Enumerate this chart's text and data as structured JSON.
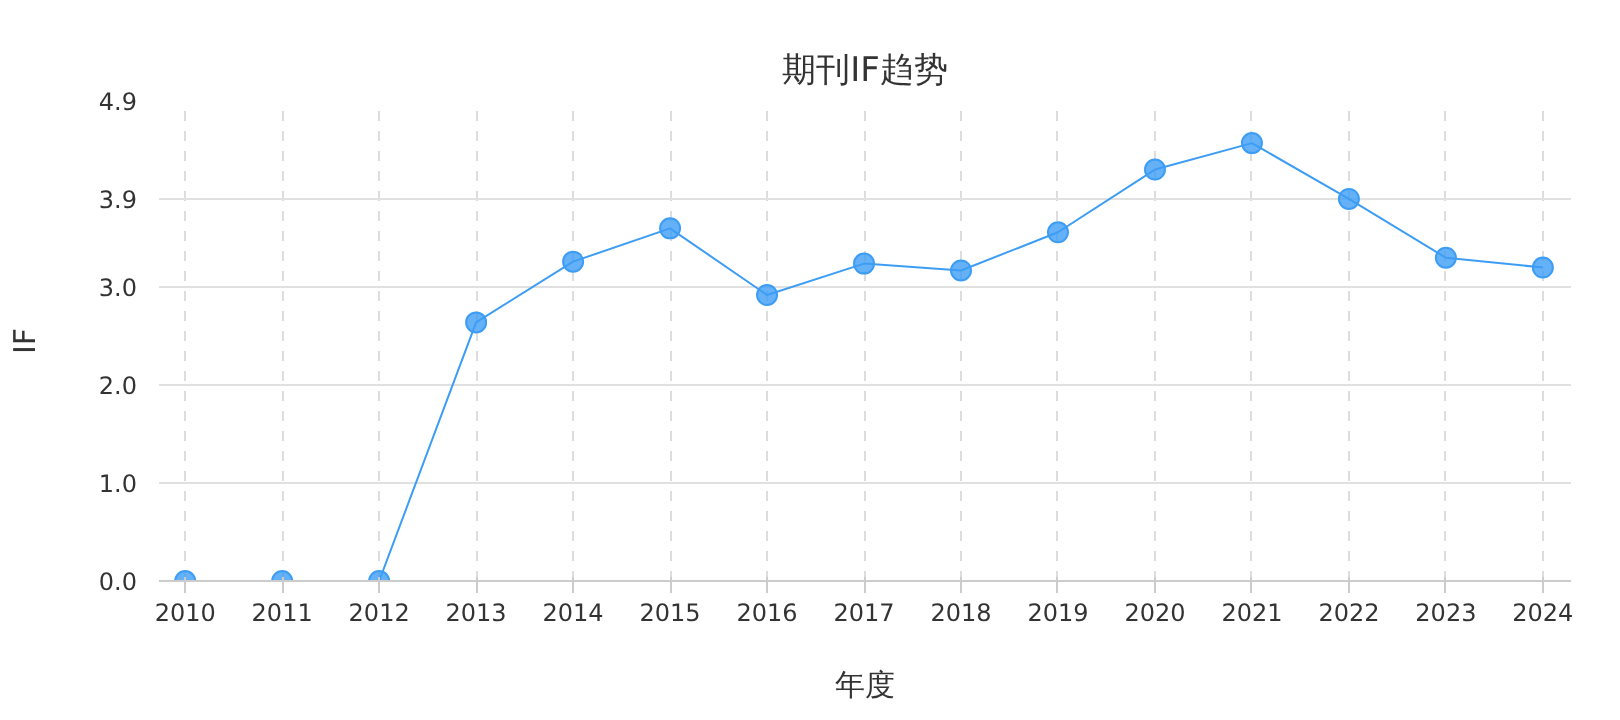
{
  "chart_data": {
    "type": "line",
    "title": "期刊IF趋势",
    "xlabel": "年度",
    "ylabel": "IF",
    "x": [
      2010,
      2011,
      2012,
      2013,
      2014,
      2015,
      2016,
      2017,
      2018,
      2019,
      2020,
      2021,
      2022,
      2023,
      2024
    ],
    "series": [
      {
        "color": "#3d9df5",
        "values": [
          0,
          0,
          0,
          2.64,
          3.26,
          3.6,
          2.92,
          3.24,
          3.17,
          3.56,
          4.2,
          4.47,
          3.9,
          3.3,
          3.2
        ]
      }
    ],
    "xlim": [
      2009.73,
      2024.29
    ],
    "xticks": [
      2010,
      2011,
      2012,
      2013,
      2014,
      2015,
      2016,
      2017,
      2018,
      2019,
      2020,
      2021,
      2022,
      2023,
      2024
    ],
    "ylim": [
      0,
      4.9
    ],
    "yticks": [
      {
        "value": 0,
        "label": "0.0"
      },
      {
        "value": 1,
        "label": "1.0"
      },
      {
        "value": 2,
        "label": "2.0"
      },
      {
        "value": 3,
        "label": "3.0"
      },
      {
        "value": 3.9,
        "label": "3.9"
      },
      {
        "value": 4.9,
        "label": "4.9"
      }
    ],
    "grid": true,
    "marker": "circle",
    "line_style": "solid"
  }
}
